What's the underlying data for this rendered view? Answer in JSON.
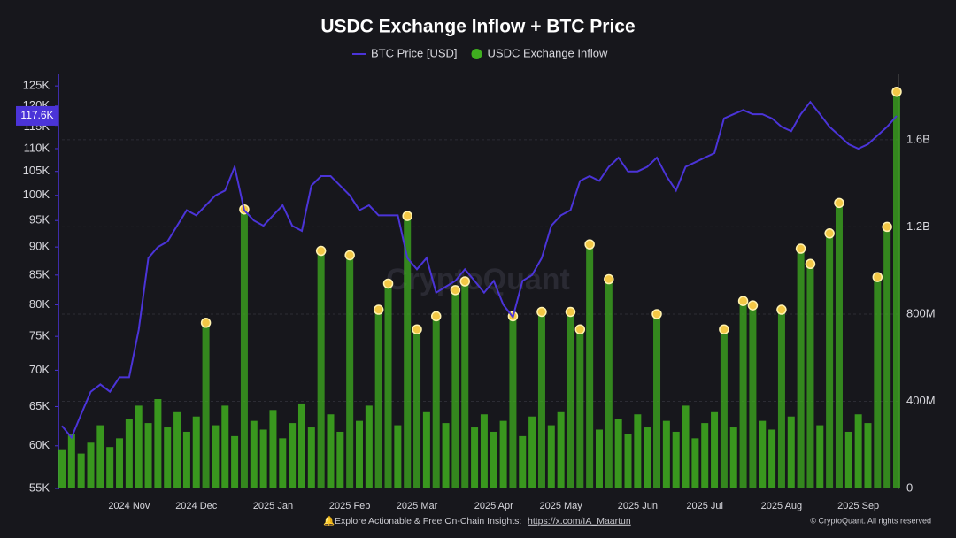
{
  "chart_data": {
    "type": "combo",
    "title": "USDC Exchange Inflow + BTC Price",
    "categories": [
      null,
      null,
      null,
      null,
      null,
      null,
      null,
      "2024 Nov",
      null,
      null,
      null,
      null,
      null,
      null,
      "2024 Dec",
      null,
      null,
      null,
      null,
      null,
      null,
      null,
      "2025 Jan",
      null,
      null,
      null,
      null,
      null,
      null,
      null,
      "2025 Feb",
      null,
      null,
      null,
      null,
      null,
      null,
      "2025 Mar",
      null,
      null,
      null,
      null,
      null,
      null,
      null,
      "2025 Apr",
      null,
      null,
      null,
      null,
      null,
      null,
      "2025 May",
      null,
      null,
      null,
      null,
      null,
      null,
      null,
      "2025 Jun",
      null,
      null,
      null,
      null,
      null,
      null,
      "2025 Jul",
      null,
      null,
      null,
      null,
      null,
      null,
      null,
      "2025 Aug",
      null,
      null,
      null,
      null,
      null,
      null,
      null,
      "2025 Sep",
      null,
      null,
      null,
      null
    ],
    "series": [
      {
        "name": "BTC Price [USD]",
        "type": "line",
        "color": "#4b34d8",
        "axis": "y",
        "values": [
          62500,
          61000,
          64000,
          67000,
          68000,
          67000,
          69000,
          69000,
          76000,
          88000,
          90000,
          91000,
          94000,
          97000,
          96000,
          98000,
          100000,
          101000,
          106000,
          97000,
          95000,
          94000,
          96000,
          98000,
          94000,
          93000,
          102000,
          104000,
          104000,
          102000,
          100000,
          97000,
          98000,
          96000,
          96000,
          96000,
          88000,
          86000,
          88000,
          82000,
          83000,
          84000,
          86000,
          84000,
          82000,
          84000,
          80000,
          78000,
          84000,
          85000,
          88000,
          94000,
          96000,
          97000,
          103000,
          104000,
          103000,
          106000,
          108000,
          105000,
          105000,
          106000,
          108000,
          104000,
          101000,
          106000,
          107000,
          108000,
          109000,
          117000,
          118000,
          119000,
          118000,
          118000,
          117000,
          115000,
          114000,
          118000,
          121000,
          118000,
          115000,
          113000,
          111000,
          110000,
          111000,
          113000,
          115000,
          117600
        ]
      },
      {
        "name": "USDC Exchange Inflow",
        "type": "bar",
        "color": "#3fae1f",
        "marker_color": "#f3c846",
        "axis": "y2",
        "values": [
          180,
          250,
          160,
          210,
          290,
          190,
          230,
          320,
          380,
          300,
          410,
          280,
          350,
          260,
          330,
          760,
          290,
          380,
          240,
          1280,
          310,
          270,
          360,
          230,
          300,
          390,
          280,
          1090,
          340,
          260,
          1070,
          310,
          380,
          820,
          940,
          290,
          1250,
          730,
          350,
          790,
          300,
          910,
          950,
          280,
          340,
          260,
          310,
          790,
          240,
          330,
          810,
          290,
          350,
          810,
          730,
          1120,
          270,
          960,
          320,
          250,
          340,
          280,
          800,
          310,
          260,
          380,
          230,
          300,
          350,
          730,
          280,
          860,
          840,
          310,
          270,
          820,
          330,
          1100,
          1030,
          290,
          1170,
          1310,
          260,
          340,
          300,
          970,
          1200,
          1820
        ]
      }
    ],
    "y_scale": "log",
    "ylim": [
      55000,
      128000
    ],
    "yticks": [
      {
        "value": 55000,
        "label": "55K"
      },
      {
        "value": 60000,
        "label": "60K"
      },
      {
        "value": 65000,
        "label": "65K"
      },
      {
        "value": 70000,
        "label": "70K"
      },
      {
        "value": 75000,
        "label": "75K"
      },
      {
        "value": 80000,
        "label": "80K"
      },
      {
        "value": 85000,
        "label": "85K"
      },
      {
        "value": 90000,
        "label": "90K"
      },
      {
        "value": 95000,
        "label": "95K"
      },
      {
        "value": 100000,
        "label": "100K"
      },
      {
        "value": 105000,
        "label": "105K"
      },
      {
        "value": 110000,
        "label": "110K"
      },
      {
        "value": 115000,
        "label": "115K"
      },
      {
        "value": 120000,
        "label": "120K"
      },
      {
        "value": 125000,
        "label": "125K"
      }
    ],
    "last_price_label": {
      "value": 117600,
      "label": "117.6K"
    },
    "y2lim": [
      0,
      1900
    ],
    "y2ticks": [
      0,
      {
        "value": 400,
        "label": "400M"
      },
      {
        "value": 800,
        "label": "800M"
      },
      {
        "value": 1200,
        "label": "1.2B"
      },
      {
        "value": 1600,
        "label": "1.6B"
      }
    ],
    "grid": true,
    "legend": "top",
    "watermark": "CryptoQuant",
    "footer": "Explore Actionable & Free On-Chain Insights:",
    "footer_link": "https://x.com/IA_Maartun",
    "copyright": "© CryptoQuant. All rights reserved"
  }
}
